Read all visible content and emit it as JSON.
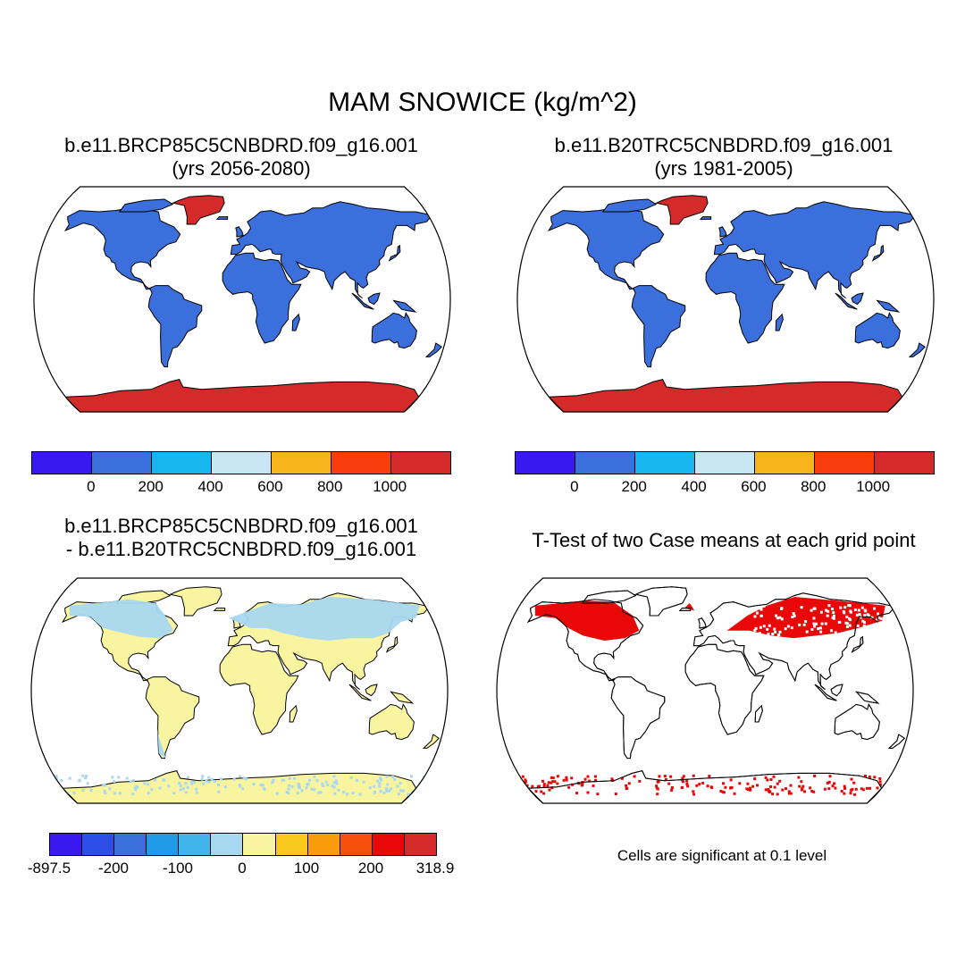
{
  "figure": {
    "title": "MAM SNOWICE (kg/m^2)"
  },
  "panels": {
    "case1": {
      "line1": "b.e11.BRCP85C5CNBDRD.f09_g16.001",
      "line2": "(yrs 2056-2080)"
    },
    "case2": {
      "line1": "b.e11.B20TRC5CNBDRD.f09_g16.001",
      "line2": "(yrs 1981-2005)"
    },
    "diff": {
      "line1": "b.e11.BRCP85C5CNBDRD.f09_g16.001",
      "line2": "- b.e11.B20TRC5CNBDRD.f09_g16.001"
    },
    "ttest": {
      "line1": "T-Test of two Case means at each grid point",
      "note": "Cells are significant at 0.1 level"
    }
  },
  "colorbars": {
    "abs": {
      "colors": [
        "#3a18f0",
        "#3a6fdc",
        "#18b6f0",
        "#c8e6f4",
        "#f8b41c",
        "#f83c0c",
        "#d42a2a"
      ],
      "tick_labels": [
        "0",
        "200",
        "400",
        "600",
        "800",
        "1000"
      ]
    },
    "diff": {
      "colors": [
        "#3a18f0",
        "#2d4ee8",
        "#3a6fdc",
        "#1e9ae6",
        "#42b4ec",
        "#a8d8f0",
        "#f8f4a0",
        "#f8c81c",
        "#f89c0c",
        "#f8500c",
        "#e80808",
        "#d42a2a"
      ],
      "tick_labels": [
        "-897.5",
        "-200",
        "-100",
        "0",
        "100",
        "200",
        "318.9"
      ]
    }
  },
  "map_colors": {
    "ocean": "#ffffff",
    "land_abs": "#3a6fdc",
    "ice_abs": "#d42a2a",
    "land_diff": "#f8f4a0",
    "snow_diff": "#a8d8f0",
    "significant": "#e80808"
  }
}
